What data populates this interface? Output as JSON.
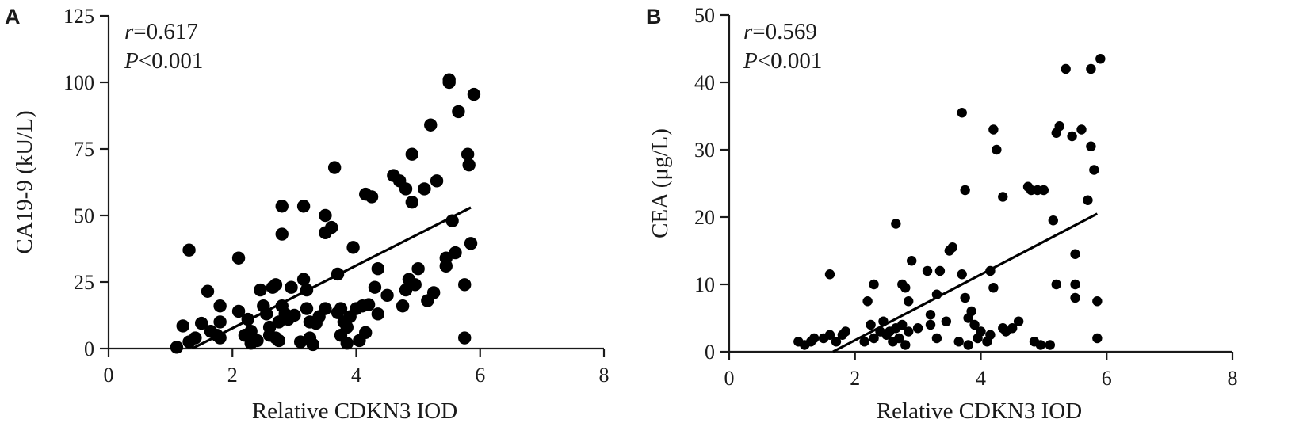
{
  "chart_data": [
    {
      "panel_label": "A",
      "type": "scatter",
      "xlabel": "Relative CDKN3 IOD",
      "ylabel": "CA19-9 (kU/L)",
      "xlim": [
        0,
        8
      ],
      "ylim": [
        0,
        125
      ],
      "xticks": [
        "0",
        "2",
        "4",
        "6",
        "8"
      ],
      "yticks": [
        "0",
        "25",
        "50",
        "75",
        "100",
        "125"
      ],
      "grid": false,
      "annotation": {
        "r_symbol": "r",
        "r_value": "=0.617",
        "p_symbol": "P",
        "p_value": "<0.001"
      },
      "fit_line": {
        "x": [
          1.35,
          5.85
        ],
        "y": [
          0,
          53
        ]
      },
      "points": [
        [
          1.1,
          0.5
        ],
        [
          1.2,
          8.5
        ],
        [
          1.3,
          2.5
        ],
        [
          1.3,
          37
        ],
        [
          1.4,
          4
        ],
        [
          1.5,
          9.5
        ],
        [
          1.6,
          21.5
        ],
        [
          1.65,
          6.5
        ],
        [
          1.75,
          5
        ],
        [
          1.8,
          16
        ],
        [
          1.8,
          10
        ],
        [
          1.8,
          4
        ],
        [
          2.1,
          34
        ],
        [
          2.1,
          14
        ],
        [
          2.2,
          5
        ],
        [
          2.25,
          11
        ],
        [
          2.3,
          6.5
        ],
        [
          2.3,
          2
        ],
        [
          2.4,
          3
        ],
        [
          2.45,
          22
        ],
        [
          2.5,
          16
        ],
        [
          2.55,
          13
        ],
        [
          2.6,
          8
        ],
        [
          2.6,
          5
        ],
        [
          2.65,
          23
        ],
        [
          2.7,
          24
        ],
        [
          2.7,
          4
        ],
        [
          2.75,
          3
        ],
        [
          2.75,
          10
        ],
        [
          2.8,
          53.5
        ],
        [
          2.8,
          43
        ],
        [
          2.8,
          16
        ],
        [
          2.85,
          13
        ],
        [
          2.9,
          11
        ],
        [
          2.95,
          23
        ],
        [
          3.0,
          12.5
        ],
        [
          3.1,
          2.5
        ],
        [
          3.15,
          53.5
        ],
        [
          3.15,
          26
        ],
        [
          3.2,
          22
        ],
        [
          3.2,
          15
        ],
        [
          3.25,
          4
        ],
        [
          3.25,
          10
        ],
        [
          3.3,
          1.5
        ],
        [
          3.35,
          9.5
        ],
        [
          3.4,
          12
        ],
        [
          3.5,
          43.5
        ],
        [
          3.5,
          50
        ],
        [
          3.5,
          15
        ],
        [
          3.6,
          45.5
        ],
        [
          3.65,
          68
        ],
        [
          3.7,
          28
        ],
        [
          3.7,
          13.5
        ],
        [
          3.75,
          15
        ],
        [
          3.75,
          5
        ],
        [
          3.8,
          10
        ],
        [
          3.85,
          8
        ],
        [
          3.85,
          2
        ],
        [
          3.9,
          12
        ],
        [
          3.95,
          38
        ],
        [
          4.0,
          15
        ],
        [
          4.05,
          3
        ],
        [
          4.1,
          16
        ],
        [
          4.15,
          6
        ],
        [
          4.15,
          58
        ],
        [
          4.2,
          16.5
        ],
        [
          4.25,
          57
        ],
        [
          4.3,
          23
        ],
        [
          4.35,
          13
        ],
        [
          4.35,
          30
        ],
        [
          4.5,
          20
        ],
        [
          4.6,
          65
        ],
        [
          4.7,
          63
        ],
        [
          4.75,
          16
        ],
        [
          4.8,
          22
        ],
        [
          4.8,
          60
        ],
        [
          4.85,
          26
        ],
        [
          4.9,
          73
        ],
        [
          4.9,
          55
        ],
        [
          4.95,
          24
        ],
        [
          5.0,
          30
        ],
        [
          5.1,
          60
        ],
        [
          5.15,
          18
        ],
        [
          5.2,
          84
        ],
        [
          5.25,
          21
        ],
        [
          5.3,
          63
        ],
        [
          5.45,
          31
        ],
        [
          5.45,
          34
        ],
        [
          5.5,
          101
        ],
        [
          5.5,
          100
        ],
        [
          5.55,
          48
        ],
        [
          5.6,
          36
        ],
        [
          5.65,
          89
        ],
        [
          5.75,
          24
        ],
        [
          5.75,
          4
        ],
        [
          5.8,
          73
        ],
        [
          5.82,
          69
        ],
        [
          5.85,
          39.5
        ],
        [
          5.9,
          95.5
        ]
      ]
    },
    {
      "panel_label": "B",
      "type": "scatter",
      "xlabel": "Relative CDKN3 IOD",
      "ylabel": "CEA (μg/L)",
      "xlim": [
        0,
        8
      ],
      "ylim": [
        0,
        50
      ],
      "xticks": [
        "0",
        "2",
        "4",
        "6",
        "8"
      ],
      "yticks": [
        "0",
        "10",
        "20",
        "30",
        "40",
        "50"
      ],
      "grid": false,
      "annotation": {
        "r_symbol": "r",
        "r_value": "=0.569",
        "p_symbol": "P",
        "p_value": "<0.001"
      },
      "fit_line": {
        "x": [
          1.65,
          5.85
        ],
        "y": [
          0,
          20.5
        ]
      },
      "points": [
        [
          1.1,
          1.5
        ],
        [
          1.2,
          1
        ],
        [
          1.3,
          1.5
        ],
        [
          1.35,
          2
        ],
        [
          1.5,
          2
        ],
        [
          1.6,
          2.5
        ],
        [
          1.6,
          11.5
        ],
        [
          1.7,
          1.5
        ],
        [
          1.8,
          2.5
        ],
        [
          1.85,
          3
        ],
        [
          2.15,
          1.5
        ],
        [
          2.2,
          7.5
        ],
        [
          2.25,
          4
        ],
        [
          2.3,
          2
        ],
        [
          2.3,
          10
        ],
        [
          2.4,
          3
        ],
        [
          2.45,
          4.5
        ],
        [
          2.5,
          2.5
        ],
        [
          2.55,
          3
        ],
        [
          2.6,
          1.5
        ],
        [
          2.65,
          19
        ],
        [
          2.65,
          3.5
        ],
        [
          2.7,
          2
        ],
        [
          2.75,
          4
        ],
        [
          2.75,
          10
        ],
        [
          2.8,
          9.5
        ],
        [
          2.8,
          1
        ],
        [
          2.85,
          3
        ],
        [
          2.85,
          7.5
        ],
        [
          2.9,
          13.5
        ],
        [
          3.0,
          3.5
        ],
        [
          3.15,
          12
        ],
        [
          3.2,
          5.5
        ],
        [
          3.2,
          4
        ],
        [
          3.3,
          8.5
        ],
        [
          3.3,
          2
        ],
        [
          3.35,
          12
        ],
        [
          3.45,
          4.5
        ],
        [
          3.5,
          15
        ],
        [
          3.55,
          15.5
        ],
        [
          3.65,
          1.5
        ],
        [
          3.7,
          35.5
        ],
        [
          3.7,
          11.5
        ],
        [
          3.75,
          24
        ],
        [
          3.75,
          8
        ],
        [
          3.8,
          5
        ],
        [
          3.8,
          1
        ],
        [
          3.85,
          6
        ],
        [
          3.9,
          4
        ],
        [
          3.95,
          2
        ],
        [
          4.0,
          3
        ],
        [
          4.1,
          1.5
        ],
        [
          4.15,
          2.5
        ],
        [
          4.15,
          12
        ],
        [
          4.2,
          9.5
        ],
        [
          4.2,
          33
        ],
        [
          4.25,
          30
        ],
        [
          4.35,
          23
        ],
        [
          4.35,
          3.5
        ],
        [
          4.4,
          3
        ],
        [
          4.5,
          3.5
        ],
        [
          4.6,
          4.5
        ],
        [
          4.75,
          24.5
        ],
        [
          4.8,
          24
        ],
        [
          4.85,
          1.5
        ],
        [
          4.9,
          24
        ],
        [
          4.95,
          1
        ],
        [
          5.0,
          24
        ],
        [
          5.1,
          1
        ],
        [
          5.15,
          19.5
        ],
        [
          5.2,
          10
        ],
        [
          5.2,
          32.5
        ],
        [
          5.25,
          33.5
        ],
        [
          5.35,
          42
        ],
        [
          5.45,
          32
        ],
        [
          5.5,
          14.5
        ],
        [
          5.5,
          10
        ],
        [
          5.5,
          8
        ],
        [
          5.6,
          33
        ],
        [
          5.7,
          22.5
        ],
        [
          5.75,
          42
        ],
        [
          5.75,
          30.5
        ],
        [
          5.8,
          27
        ],
        [
          5.85,
          7.5
        ],
        [
          5.85,
          2
        ],
        [
          5.9,
          43.5
        ]
      ]
    }
  ]
}
